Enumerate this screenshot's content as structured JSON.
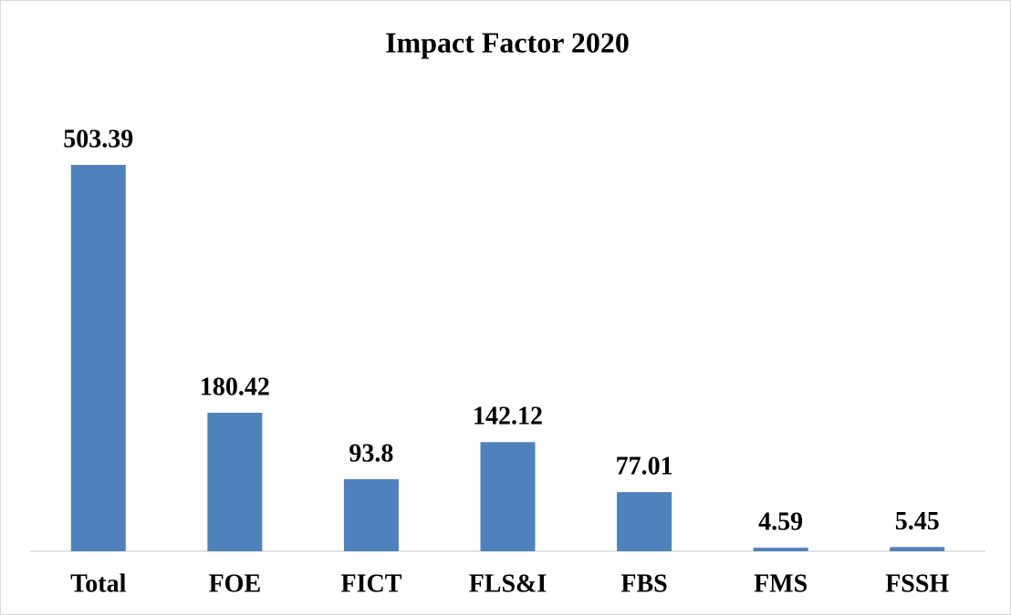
{
  "chart_data": {
    "type": "bar",
    "title": "Impact Factor 2020",
    "categories": [
      "Total",
      "FOE",
      "FICT",
      "FLS&I",
      "FBS",
      "FMS",
      "FSSH"
    ],
    "values": [
      503.39,
      180.42,
      93.8,
      142.12,
      77.01,
      4.59,
      5.45
    ],
    "color": "#4f81bd"
  }
}
